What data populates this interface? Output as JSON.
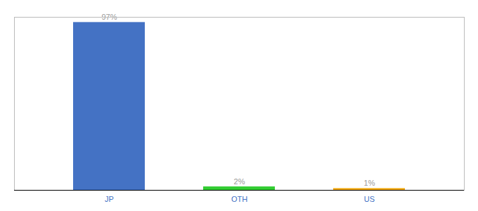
{
  "chart_data": {
    "type": "bar",
    "categories": [
      "JP",
      "OTH",
      "US"
    ],
    "values": [
      97,
      2,
      1
    ],
    "value_labels": [
      "97%",
      "2%",
      "1%"
    ],
    "colors": [
      "#4472c4",
      "#32cd32",
      "#f0a500"
    ],
    "ylim": [
      0,
      100
    ],
    "data_labels": true,
    "tick_labels": "x"
  }
}
